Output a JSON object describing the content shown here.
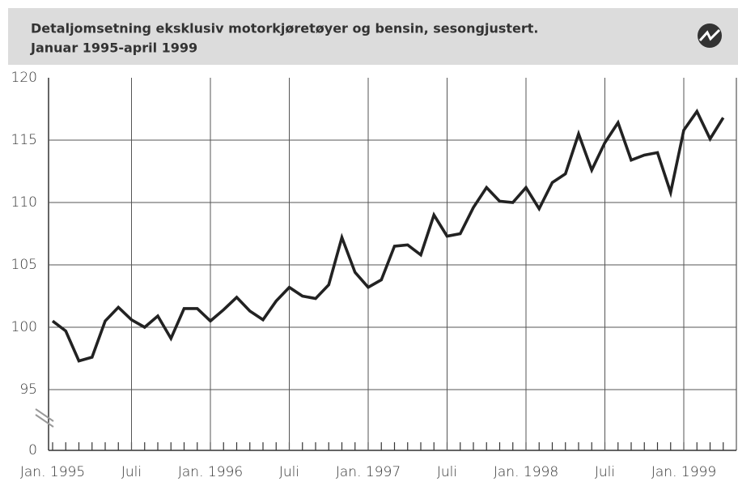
{
  "chart_data": {
    "type": "line",
    "title": "Detaljomsetning eksklusiv motorkjøretøyer og bensin, sesongjustert.",
    "subtitle": "Januar 1995-april 1999",
    "categories": [
      "Jan. 1995",
      null,
      null,
      null,
      null,
      null,
      "Juli",
      null,
      null,
      null,
      null,
      null,
      "Jan. 1996",
      null,
      null,
      null,
      null,
      null,
      "Juli",
      null,
      null,
      null,
      null,
      null,
      "Jan. 1997",
      null,
      null,
      null,
      null,
      null,
      "Juli",
      null,
      null,
      null,
      null,
      null,
      "Jan. 1998",
      null,
      null,
      null,
      null,
      null,
      "Juli",
      null,
      null,
      null,
      null,
      null,
      "Jan. 1999",
      null,
      null,
      null
    ],
    "values": [
      100.5,
      99.7,
      97.3,
      97.6,
      100.5,
      101.6,
      100.6,
      100.0,
      100.9,
      99.1,
      101.5,
      101.5,
      100.5,
      101.4,
      102.4,
      101.3,
      100.6,
      102.1,
      103.2,
      102.5,
      102.3,
      103.4,
      107.2,
      104.4,
      103.2,
      103.8,
      106.5,
      106.6,
      105.8,
      109.0,
      107.3,
      107.5,
      109.6,
      111.2,
      110.1,
      110.0,
      111.2,
      109.5,
      111.6,
      112.3,
      115.5,
      112.6,
      114.8,
      116.4,
      113.4,
      113.8,
      114.0,
      110.8,
      115.8,
      117.3,
      115.1,
      116.8
    ],
    "color": "#222222",
    "ylim": [
      0,
      120
    ],
    "ybreak": [
      0,
      95
    ],
    "yticks": [
      0,
      95,
      100,
      105,
      110,
      115,
      120
    ],
    "grid": true
  }
}
